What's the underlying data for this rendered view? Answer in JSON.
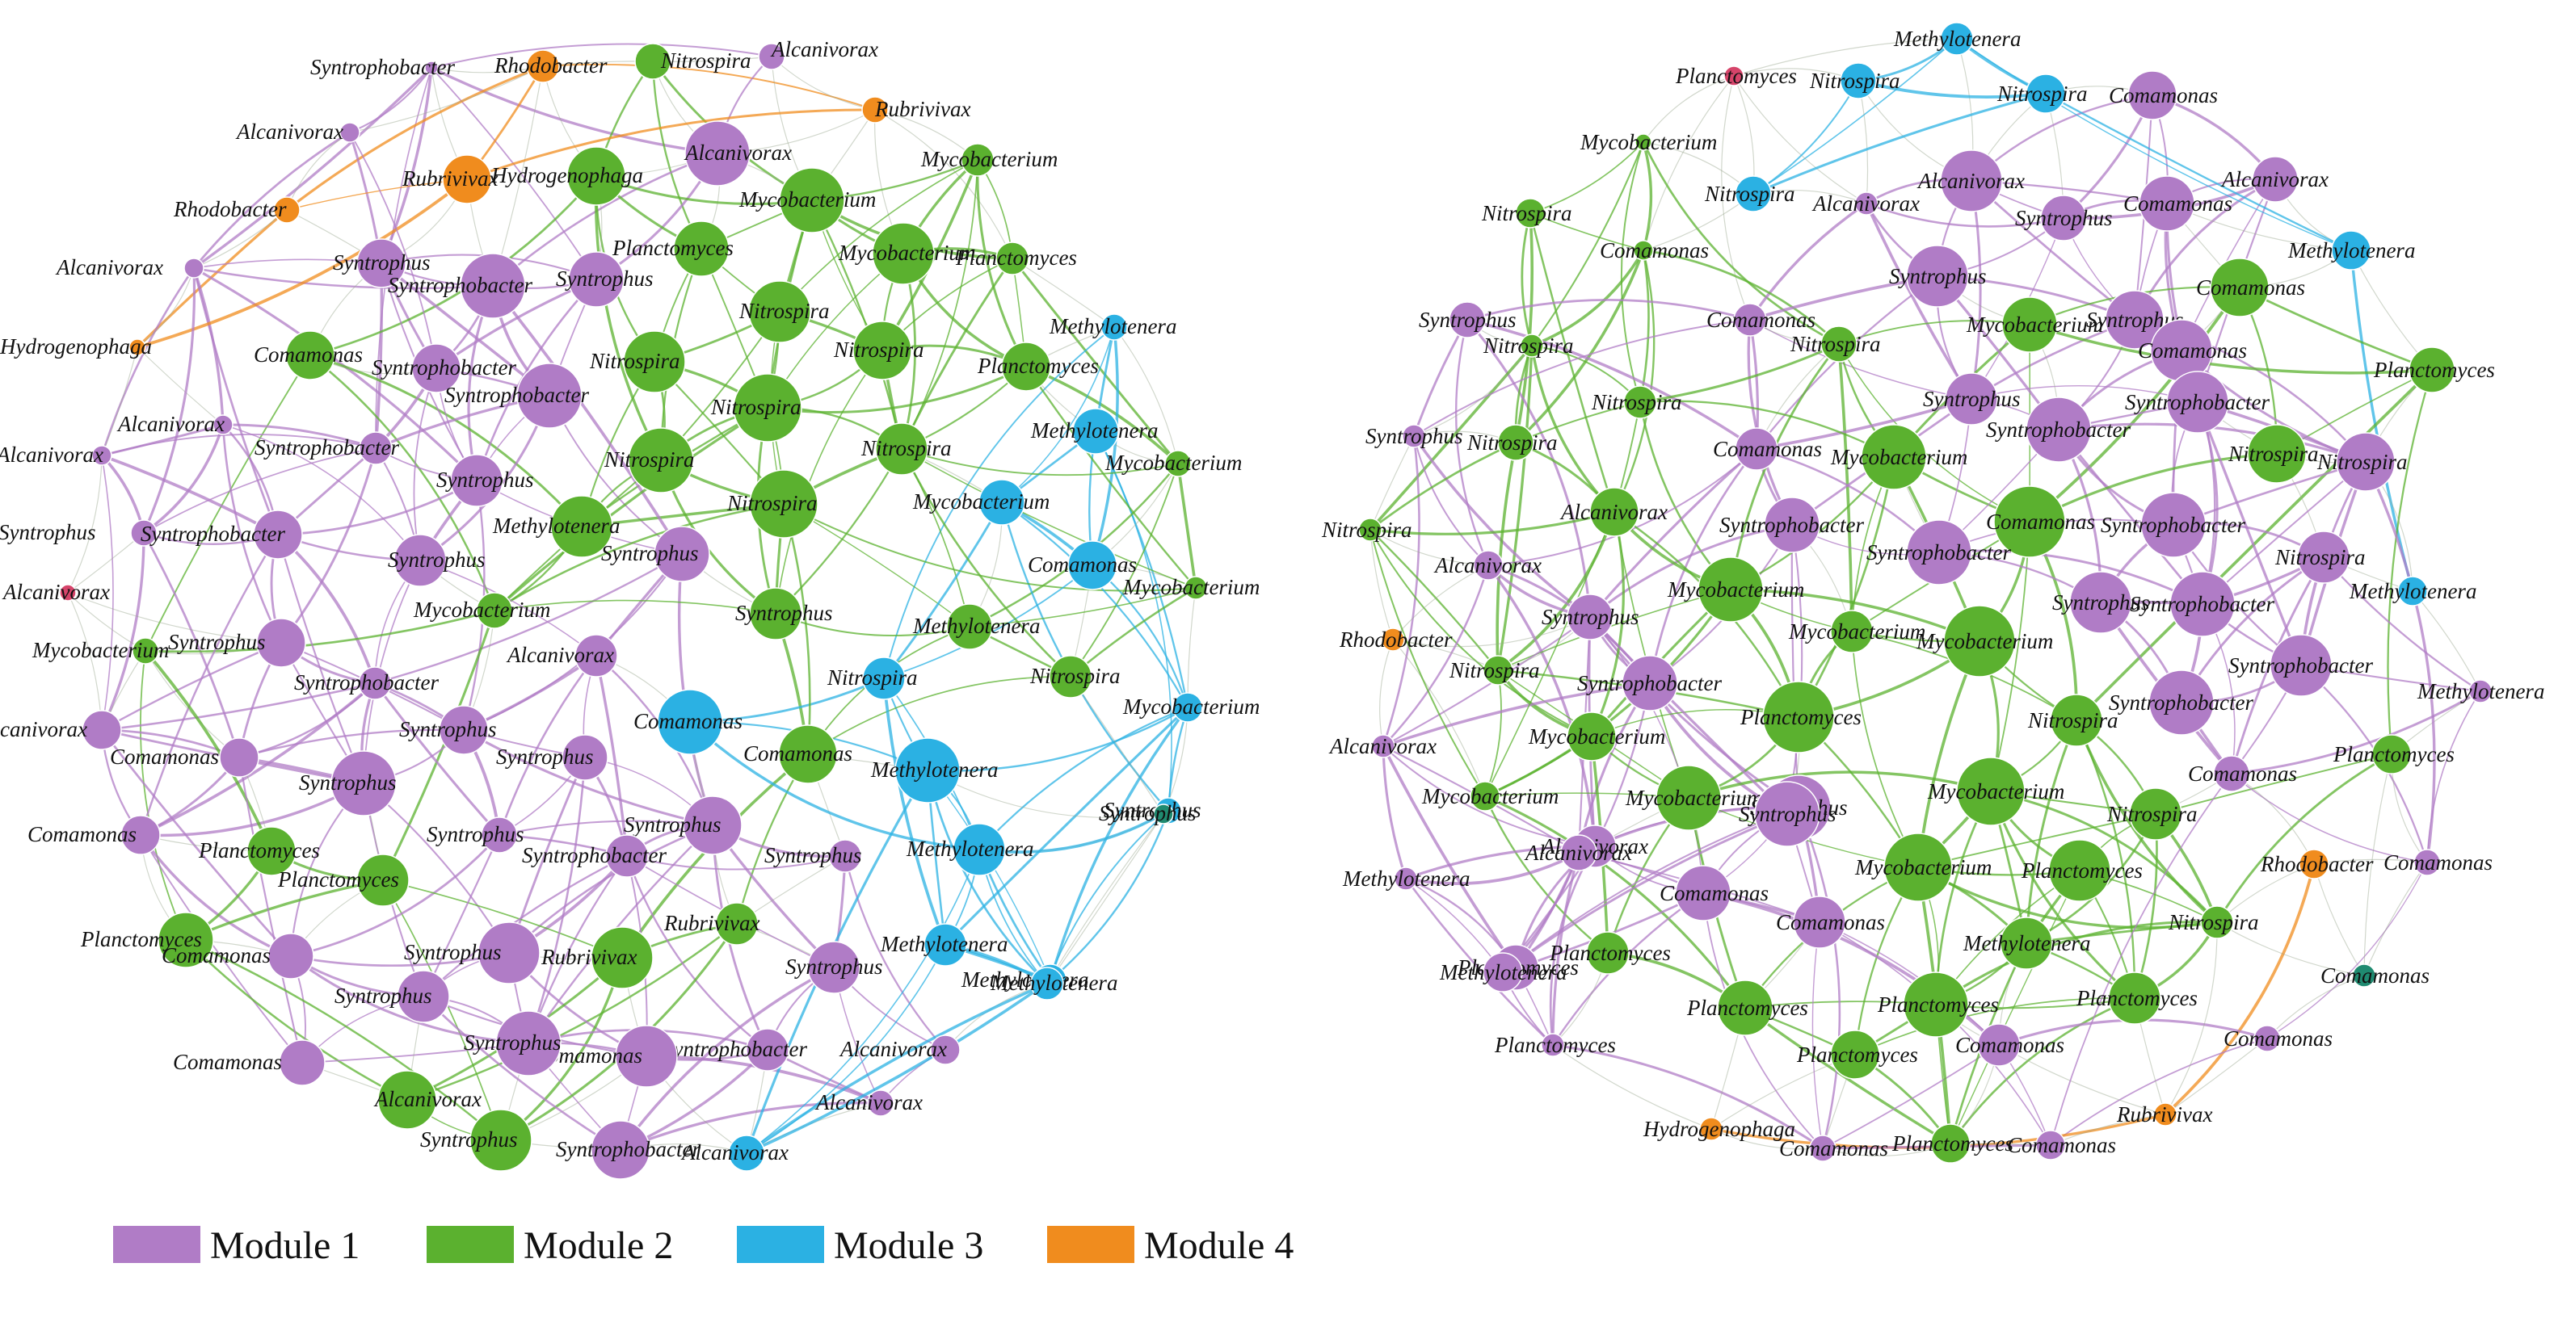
{
  "modules": {
    "m1": {
      "label": "Module 1",
      "color": "#b07cc6"
    },
    "m2": {
      "label": "Module 2",
      "color": "#5bb12f"
    },
    "m3": {
      "label": "Module 3",
      "color": "#2bb1e3"
    },
    "m4": {
      "label": "Module 4",
      "color": "#f08c1e"
    },
    "red": {
      "color": "#d6446a"
    },
    "teal": {
      "color": "#1f8a70"
    }
  },
  "legend": [
    "m1",
    "m2",
    "m3",
    "m4"
  ],
  "networks": [
    {
      "name": "network-left",
      "nodes": [
        [
          "Syntrophobacter",
          "m1",
          null
        ],
        [
          "Rhodobacter",
          "m4",
          null
        ],
        [
          "Nitrospira",
          "m2",
          null
        ],
        [
          "Alcanivorax",
          "m1",
          null
        ],
        [
          "Rubrivivax",
          "m4",
          null
        ],
        [
          "Alcanivorax",
          "m1",
          null
        ],
        [
          "Rubrivivax",
          "m4",
          null
        ],
        [
          "Alcanivorax",
          "m1",
          null
        ],
        [
          "Hydrogenophaga",
          "m2",
          null
        ],
        [
          "Mycobacterium",
          "m2",
          null
        ],
        [
          "Rhodobacter",
          "m4",
          null
        ],
        [
          "Mycobacterium",
          "m2",
          null
        ],
        [
          "Planctomyces",
          "m2",
          null
        ],
        [
          "Syntrophus",
          "m1",
          null
        ],
        [
          "Mycobacterium",
          "m2",
          null
        ],
        [
          "Planctomyces",
          "m2",
          null
        ],
        [
          "Syntrophus",
          "m1",
          null
        ],
        [
          "Alcanivorax",
          "m1",
          null
        ],
        [
          "Syntrophobacter",
          "m1",
          null
        ],
        [
          "Nitrospira",
          "m2",
          null
        ],
        [
          "Hydrogenophaga",
          "m4",
          null
        ],
        [
          "Comamonas",
          "m2",
          null
        ],
        [
          "Syntrophobacter",
          "m1",
          null
        ],
        [
          "Nitrospira",
          "m2",
          null
        ],
        [
          "Nitrospira",
          "m2",
          null
        ],
        [
          "Planctomyces",
          "m2",
          null
        ],
        [
          "Methylotenera",
          "m3",
          null
        ],
        [
          "Syntrophobacter",
          "m1",
          null
        ],
        [
          "Nitrospira",
          "m2",
          null
        ],
        [
          "Alcanivorax",
          "m1",
          null
        ],
        [
          "Alcanivorax",
          "m1",
          null
        ],
        [
          "Methylotenera",
          "m3",
          null
        ],
        [
          "Syntrophobacter",
          "m1",
          null
        ],
        [
          "Nitrospira",
          "m2",
          null
        ],
        [
          "Nitrospira",
          "m2",
          null
        ],
        [
          "Mycobacterium",
          "m2",
          null
        ],
        [
          "Syntrophus",
          "m1",
          null
        ],
        [
          "Nitrospira",
          "m2",
          null
        ],
        [
          "Mycobacterium",
          "m3",
          null
        ],
        [
          "Syntrophus",
          "m1",
          null
        ],
        [
          "Syntrophobacter",
          "m1",
          null
        ],
        [
          "Methylotenera",
          "m2",
          null
        ],
        [
          "Syntrophus",
          "m1",
          null
        ],
        [
          "Syntrophus",
          "m1",
          null
        ],
        [
          "Comamonas",
          "m3",
          null
        ],
        [
          "Alcanivorax",
          "red",
          null
        ],
        [
          "Mycobacterium",
          "m2",
          null
        ],
        [
          "Mycobacterium",
          "m2",
          null
        ],
        [
          "Syntrophus",
          "m2",
          null
        ],
        [
          "Methylotenera",
          "m2",
          null
        ],
        [
          "Mycobacterium",
          "m2",
          null
        ],
        [
          "Syntrophus",
          "m1",
          null
        ],
        [
          "Alcanivorax",
          "m1",
          null
        ],
        [
          "Nitrospira",
          "m3",
          null
        ],
        [
          "Nitrospira",
          "m2",
          null
        ],
        [
          "Syntrophobacter",
          "m1",
          null
        ],
        [
          "Comamonas",
          "m3",
          null
        ],
        [
          "Mycobacterium",
          "m3",
          null
        ],
        [
          "Alcanivorax",
          "m1",
          null
        ],
        [
          "Syntrophus",
          "m1",
          null
        ],
        [
          "Syntrophus",
          "m1",
          null
        ],
        [
          "Comamonas",
          "m2",
          null
        ],
        [
          "Methylotenera",
          "m3",
          null
        ],
        [
          "Syntrophus",
          "m3",
          null
        ],
        [
          "Comamonas",
          "m1",
          null
        ],
        [
          "Syntrophus",
          "m1",
          null
        ],
        [
          "Syntrophus",
          "teal",
          null
        ],
        [
          "Comamonas",
          "m1",
          null
        ],
        [
          "Syntrophus",
          "m1",
          null
        ],
        [
          "Planctomyces",
          "m2",
          null
        ],
        [
          "Syntrophus",
          "m1",
          null
        ],
        [
          "Syntrophobacter",
          "m1",
          null
        ],
        [
          "Syntrophus",
          "m1",
          null
        ],
        [
          "Methylotenera",
          "m3",
          null
        ],
        [
          "Planctomyces",
          "m2",
          null
        ],
        [
          "Methylotenera",
          "m3",
          null
        ],
        [
          "Planctomyces",
          "m2",
          null
        ],
        [
          "Rubrivivax",
          "m2",
          null
        ],
        [
          "Methylotenera",
          "m3",
          null
        ],
        [
          "Comamonas",
          "m1",
          null
        ],
        [
          "Syntrophus",
          "m1",
          null
        ],
        [
          "Rubrivivax",
          "m2",
          null
        ],
        [
          "Syntrophus",
          "m1",
          null
        ],
        [
          "Methylotenera",
          "m3",
          null
        ],
        [
          "Syntrophus",
          "m1",
          null
        ],
        [
          "Syntrophobacter",
          "m1",
          null
        ],
        [
          "Comamonas",
          "m1",
          null
        ],
        [
          "Syntrophus",
          "m1",
          null
        ],
        [
          "Comamonas",
          "m1",
          null
        ],
        [
          "Alcanivorax",
          "m1",
          null
        ],
        [
          "Alcanivorax",
          "m2",
          null
        ],
        [
          "Alcanivorax",
          "m1",
          null
        ],
        [
          "Syntrophus",
          "m2",
          null
        ],
        [
          "Syntrophobacter",
          "m1",
          null
        ],
        [
          "Alcanivorax",
          "m3",
          null
        ]
      ]
    },
    {
      "name": "network-right",
      "nodes": [
        [
          "Methylotenera",
          "m3",
          null
        ],
        [
          "Planctomyces",
          "red",
          null
        ],
        [
          "Nitrospira",
          "m3",
          null
        ],
        [
          "Nitrospira",
          "m3",
          null
        ],
        [
          "Comamonas",
          "m1",
          null
        ],
        [
          "Mycobacterium",
          "m2",
          null
        ],
        [
          "Alcanivorax",
          "m1",
          null
        ],
        [
          "Alcanivorax",
          "m1",
          null
        ],
        [
          "Nitrospira",
          "m3",
          null
        ],
        [
          "Alcanivorax",
          "m1",
          null
        ],
        [
          "Comamonas",
          "m1",
          null
        ],
        [
          "Syntrophus",
          "m1",
          null
        ],
        [
          "Nitrospira",
          "m2",
          null
        ],
        [
          "Comamonas",
          "m2",
          null
        ],
        [
          "Methylotenera",
          "m3",
          null
        ],
        [
          "Syntrophus",
          "m1",
          null
        ],
        [
          "Comamonas",
          "m2",
          null
        ],
        [
          "Syntrophus",
          "m1",
          null
        ],
        [
          "Comamonas",
          "m1",
          null
        ],
        [
          "Syntrophus",
          "m1",
          null
        ],
        [
          "Nitrospira",
          "m2",
          null
        ],
        [
          "Nitrospira",
          "m2",
          null
        ],
        [
          "Mycobacterium",
          "m2",
          null
        ],
        [
          "Comamonas",
          "m1",
          null
        ],
        [
          "Planctomyces",
          "m2",
          null
        ],
        [
          "Nitrospira",
          "m2",
          null
        ],
        [
          "Syntrophus",
          "m1",
          null
        ],
        [
          "Syntrophobacter",
          "m1",
          null
        ],
        [
          "Syntrophus",
          "m1",
          null
        ],
        [
          "Syntrophobacter",
          "m1",
          null
        ],
        [
          "Nitrospira",
          "m2",
          null
        ],
        [
          "Comamonas",
          "m1",
          null
        ],
        [
          "Mycobacterium",
          "m2",
          null
        ],
        [
          "Nitrospira",
          "m2",
          null
        ],
        [
          "Nitrospira",
          "m1",
          null
        ],
        [
          "Nitrospira",
          "m2",
          null
        ],
        [
          "Comamonas",
          "m2",
          null
        ],
        [
          "Syntrophobacter",
          "m1",
          null
        ],
        [
          "Alcanivorax",
          "m2",
          null
        ],
        [
          "Syntrophobacter",
          "m1",
          null
        ],
        [
          "Syntrophobacter",
          "m1",
          null
        ],
        [
          "Nitrospira",
          "m1",
          null
        ],
        [
          "Alcanivorax",
          "m1",
          null
        ],
        [
          "Mycobacterium",
          "m2",
          null
        ],
        [
          "Methylotenera",
          "m3",
          null
        ],
        [
          "Syntrophus",
          "m1",
          null
        ],
        [
          "Syntrophus",
          "m1",
          null
        ],
        [
          "Syntrophobacter",
          "m1",
          null
        ],
        [
          "Rhodobacter",
          "m4",
          null
        ],
        [
          "Mycobacterium",
          "m2",
          null
        ],
        [
          "Nitrospira",
          "m2",
          null
        ],
        [
          "Syntrophobacter",
          "m1",
          null
        ],
        [
          "Mycobacterium",
          "m2",
          null
        ],
        [
          "Syntrophobacter",
          "m1",
          null
        ],
        [
          "Methylotenera",
          "m1",
          null
        ],
        [
          "Nitrospira",
          "m2",
          null
        ],
        [
          "Syntrophobacter",
          "m1",
          null
        ],
        [
          "Planctomyces",
          "m2",
          null
        ],
        [
          "Alcanivorax",
          "m1",
          null
        ],
        [
          "Mycobacterium",
          "m2",
          null
        ],
        [
          "Planctomyces",
          "m2",
          null
        ],
        [
          "Alcanivorax",
          "m1",
          null
        ],
        [
          "Syntrophus",
          "m1",
          null
        ],
        [
          "Comamonas",
          "m1",
          null
        ],
        [
          "Mycobacterium",
          "m2",
          null
        ],
        [
          "Mycobacterium",
          "m2",
          null
        ],
        [
          "Mycobacterium",
          "m2",
          null
        ],
        [
          "Syntrophus",
          "m1",
          null
        ],
        [
          "Nitrospira",
          "m2",
          null
        ],
        [
          "Alcanivorax",
          "m1",
          null
        ],
        [
          "Comamonas",
          "m1",
          null
        ],
        [
          "Mycobacterium",
          "m2",
          null
        ],
        [
          "Rhodobacter",
          "m4",
          null
        ],
        [
          "Comamonas",
          "m1",
          null
        ],
        [
          "Planctomyces",
          "m2",
          null
        ],
        [
          "Methylotenera",
          "m1",
          null
        ],
        [
          "Comamonas",
          "m1",
          null
        ],
        [
          "Planctomyces",
          "m1",
          null
        ],
        [
          "Methylotenera",
          "m2",
          null
        ],
        [
          "Nitrospira",
          "m2",
          null
        ],
        [
          "Planctomyces",
          "m2",
          null
        ],
        [
          "Methylotenera",
          "m1",
          null
        ],
        [
          "Comamonas",
          "teal",
          null
        ],
        [
          "Planctomyces",
          "m2",
          null
        ],
        [
          "Planctomyces",
          "m2",
          null
        ],
        [
          "Planctomyces",
          "m2",
          null
        ],
        [
          "Comamonas",
          "m1",
          null
        ],
        [
          "Planctomyces",
          "m1",
          null
        ],
        [
          "Planctomyces",
          "m2",
          null
        ],
        [
          "Comamonas",
          "m1",
          null
        ],
        [
          "Hydrogenophaga",
          "m4",
          null
        ],
        [
          "Rubrivivax",
          "m4",
          null
        ],
        [
          "Comamonas",
          "m1",
          null
        ],
        [
          "Planctomyces",
          "m2",
          null
        ],
        [
          "Comamonas",
          "m1",
          null
        ]
      ]
    }
  ]
}
